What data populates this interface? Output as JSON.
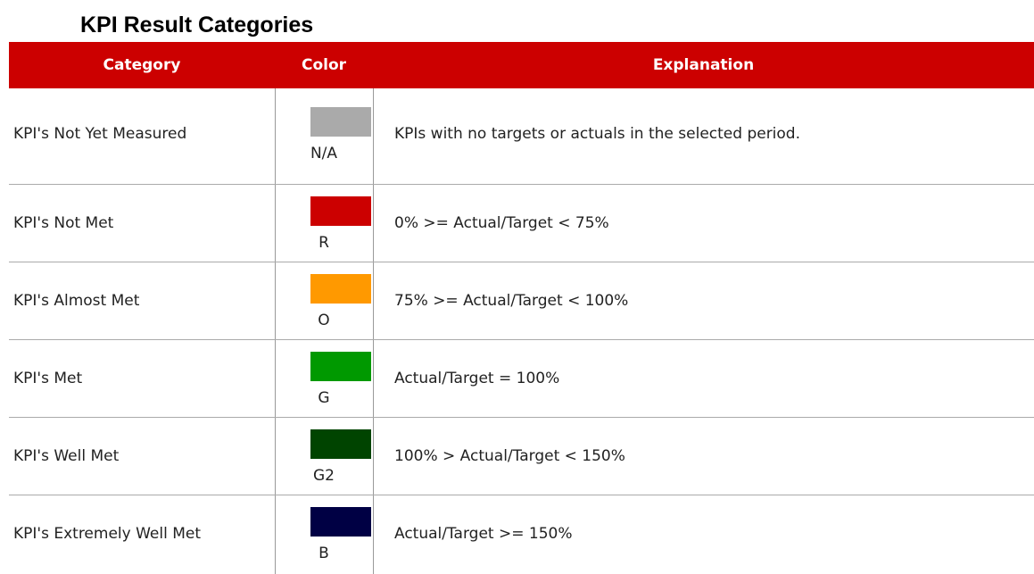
{
  "title": "KPI Result Categories",
  "table": {
    "header": [
      "Category",
      "Color",
      "Explanation"
    ],
    "rows": [
      {
        "category": "KPI's Not Yet Measured",
        "color": "#aaaaaa",
        "code": "N/A",
        "explanation": "KPIs with no targets or actuals in the selected period."
      },
      {
        "category": "KPI's Not Met",
        "color": "#cc0000",
        "code": "R",
        "explanation": "0% >= Actual/Target < 75%"
      },
      {
        "category": "KPI's Almost Met",
        "color": "#ff9900",
        "code": "O",
        "explanation": "75% >= Actual/Target < 100%"
      },
      {
        "category": "KPI's Met",
        "color": "#009900",
        "code": "G",
        "explanation": "Actual/Target = 100%"
      },
      {
        "category": "KPI's Well Met",
        "color": "#004400",
        "code": "G2",
        "explanation": "100% > Actual/Target < 150%"
      },
      {
        "category": "KPI's Extremely Well Met",
        "color": "#000044",
        "code": "B",
        "explanation": "Actual/Target >= 150%"
      }
    ]
  }
}
